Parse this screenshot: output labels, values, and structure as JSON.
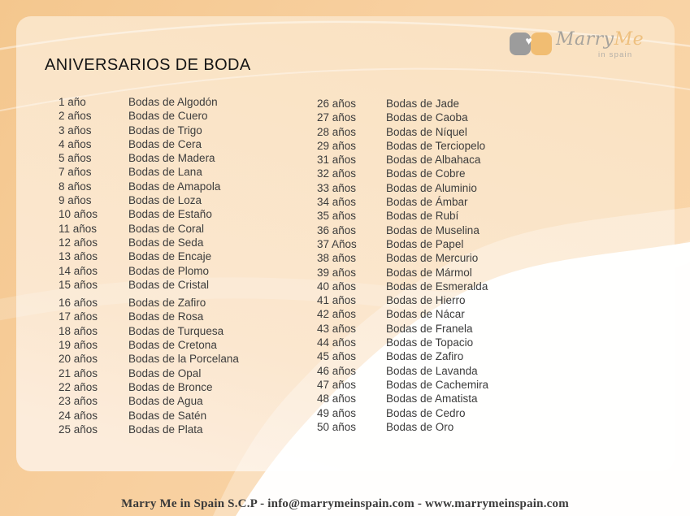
{
  "title": "ANIVERSARIOS DE BODA",
  "logo": {
    "word1": "Marry",
    "word2": "Me",
    "tagline": "in spain",
    "heart": "♥"
  },
  "anniversaries": {
    "left_column": [
      {
        "years": "1 año",
        "name": "Bodas de Algodón"
      },
      {
        "years": "2 años",
        "name": "Bodas de Cuero"
      },
      {
        "years": "3 años",
        "name": "Bodas de Trigo"
      },
      {
        "years": "4 años",
        "name": "Bodas de Cera"
      },
      {
        "years": "5 años",
        "name": "Bodas de Madera"
      },
      {
        "years": "7 años",
        "name": "Bodas de Lana"
      },
      {
        "years": "8 años",
        "name": "Bodas de Amapola"
      },
      {
        "years": "9 años",
        "name": "Bodas de Loza"
      },
      {
        "years": "10 años",
        "name": "Bodas de Estaño"
      },
      {
        "years": "11 años",
        "name": "Bodas de Coral"
      },
      {
        "years": "12 años",
        "name": "Bodas de Seda"
      },
      {
        "years": "13 años",
        "name": "Bodas de Encaje"
      },
      {
        "years": "14 años",
        "name": "Bodas de Plomo"
      },
      {
        "years": "15 años",
        "name": "Bodas de Cristal"
      },
      {
        "years": "16 años",
        "name": "Bodas de Zafiro"
      },
      {
        "years": "17 años",
        "name": "Bodas de Rosa"
      },
      {
        "years": "18 años",
        "name": "Bodas de Turquesa"
      },
      {
        "years": "19 años",
        "name": "Bodas de Cretona"
      },
      {
        "years": "20 años",
        "name": "Bodas de la Porcelana"
      },
      {
        "years": "21 años",
        "name": "Bodas de Opal"
      },
      {
        "years": "22 años",
        "name": "Bodas de Bronce"
      },
      {
        "years": "23 años",
        "name": "Bodas de Agua"
      },
      {
        "years": "24 años",
        "name": "Bodas de Satén"
      },
      {
        "years": "25 años",
        "name": "Bodas de Plata"
      }
    ],
    "right_column": [
      {
        "years": "26 años",
        "name": "Bodas de Jade"
      },
      {
        "years": "27 años",
        "name": "Bodas de Caoba"
      },
      {
        "years": "28 años",
        "name": "Bodas de Níquel"
      },
      {
        "years": "29 años",
        "name": "Bodas de Terciopelo"
      },
      {
        "years": "31 años",
        "name": "Bodas de Albahaca"
      },
      {
        "years": "32 años",
        "name": "Bodas de Cobre"
      },
      {
        "years": "33 años",
        "name": "Bodas de Aluminio"
      },
      {
        "years": "34 años",
        "name": "Bodas de Ámbar"
      },
      {
        "years": "35 años",
        "name": "Bodas de Rubí"
      },
      {
        "years": "36 años",
        "name": "Bodas de Muselina"
      },
      {
        "years": "37 Años",
        "name": "Bodas de Papel"
      },
      {
        "years": "38 años",
        "name": "Bodas de Mercurio"
      },
      {
        "years": "39 años",
        "name": "Bodas de Mármol"
      },
      {
        "years": "40 años",
        "name": "Bodas de Esmeralda"
      },
      {
        "years": "41 años",
        "name": "Bodas de Hierro"
      },
      {
        "years": "42 años",
        "name": "Bodas de Nácar"
      },
      {
        "years": "43 años",
        "name": "Bodas de Franela"
      },
      {
        "years": "44 años",
        "name": "Bodas de Topacio"
      },
      {
        "years": "45 años",
        "name": "Bodas de Zafiro"
      },
      {
        "years": "46 años",
        "name": "Bodas de Lavanda"
      },
      {
        "years": "47 años",
        "name": "Bodas de Cachemira"
      },
      {
        "years": "48 años",
        "name": "Bodas de Amatista"
      },
      {
        "years": "49 años",
        "name": "Bodas de Cedro"
      },
      {
        "years": "50 años",
        "name": "Bodas de Oro"
      }
    ]
  },
  "footer": {
    "text": "Marry Me in Spain S.C.P - info@marrymeinspain.com - www.marrymeinspain.com"
  },
  "colors": {
    "frame": "#f4c78e",
    "frame2": "#fad7ab",
    "panel_top": "#fae2c2",
    "panel_bottom": "#fcecdb",
    "text": "#3c3c3c",
    "logo_gray": "#9c9c9c",
    "logo_orange": "#f1bd72",
    "white_wave": "#ffffff"
  }
}
